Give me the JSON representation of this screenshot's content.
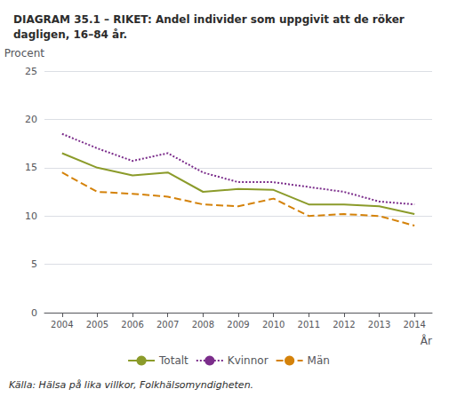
{
  "chart_data": {
    "type": "line",
    "title": "DIAGRAM 35.1 – RIKET: Andel individer som uppgivit att de röker\ndagligen, 16–84 år.",
    "x_label": "År",
    "y_label": "Procent",
    "annotations": [
      "Källa: Hälsa på lika villkor, Folkhälsomyndigheten."
    ],
    "x": [
      2004,
      2005,
      2006,
      2007,
      2008,
      2009,
      2010,
      2011,
      2012,
      2013,
      2014
    ],
    "series": [
      {
        "name": "Totalt",
        "color": "#8b9b2a",
        "line_style": "solid",
        "values": [
          16.5,
          15.0,
          14.2,
          14.5,
          12.5,
          12.8,
          12.7,
          11.2,
          11.2,
          11.0,
          10.2
        ]
      },
      {
        "name": "Kvinnor",
        "color": "#7b2d8b",
        "line_style": "dotted",
        "values": [
          18.5,
          17.0,
          15.7,
          16.5,
          14.5,
          13.5,
          13.5,
          13.0,
          12.5,
          11.5,
          11.2
        ]
      },
      {
        "name": "Män",
        "color": "#d4820a",
        "line_style": "dashed",
        "values": [
          14.5,
          12.5,
          12.3,
          12.0,
          11.2,
          11.0,
          11.8,
          10.0,
          10.2,
          10.0,
          9.0
        ]
      }
    ],
    "xlim": [
      2003.5,
      2014.5
    ],
    "xticks": [
      2004,
      2005,
      2006,
      2007,
      2008,
      2009,
      2010,
      2011,
      2012,
      2013,
      2014
    ],
    "ylim": [
      0,
      25
    ],
    "yticks": [
      0,
      5,
      10,
      15,
      20,
      25
    ],
    "grid": true,
    "legend": "bottom"
  }
}
